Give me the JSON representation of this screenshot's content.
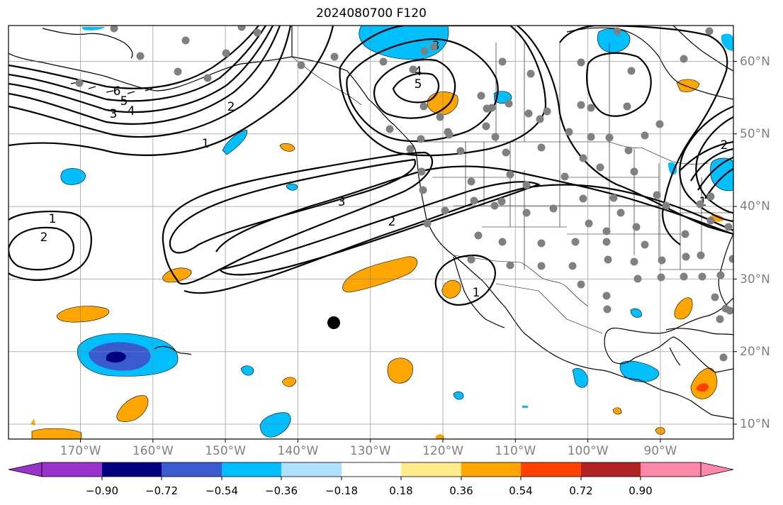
{
  "title": "2024080700 F120",
  "map": {
    "lon_labels": [
      "170°W",
      "160°W",
      "150°W",
      "140°W",
      "130°W",
      "120°W",
      "110°W",
      "100°W",
      "90°W"
    ],
    "lat_labels": [
      "60°N",
      "50°N",
      "40°N",
      "30°N",
      "20°N",
      "10°N"
    ],
    "contour_labels": [
      "6",
      "5",
      "4",
      "3",
      "2",
      "1",
      "5",
      "4",
      "3",
      "3",
      "2",
      "2",
      "1",
      "1",
      "2",
      "1"
    ],
    "colorbar": {
      "tick_labels": [
        "−0.90",
        "−0.72",
        "−0.54",
        "−0.36",
        "−0.18",
        "0.18",
        "0.36",
        "0.54",
        "0.72",
        "0.90"
      ],
      "colors": [
        "#9933cc",
        "#000080",
        "#3a5bd0",
        "#00bfff",
        "#b0e0ff",
        "#ffffff",
        "#ffeb8a",
        "#ffa500",
        "#ff4000",
        "#b22222",
        "#ff88aa"
      ]
    }
  }
}
